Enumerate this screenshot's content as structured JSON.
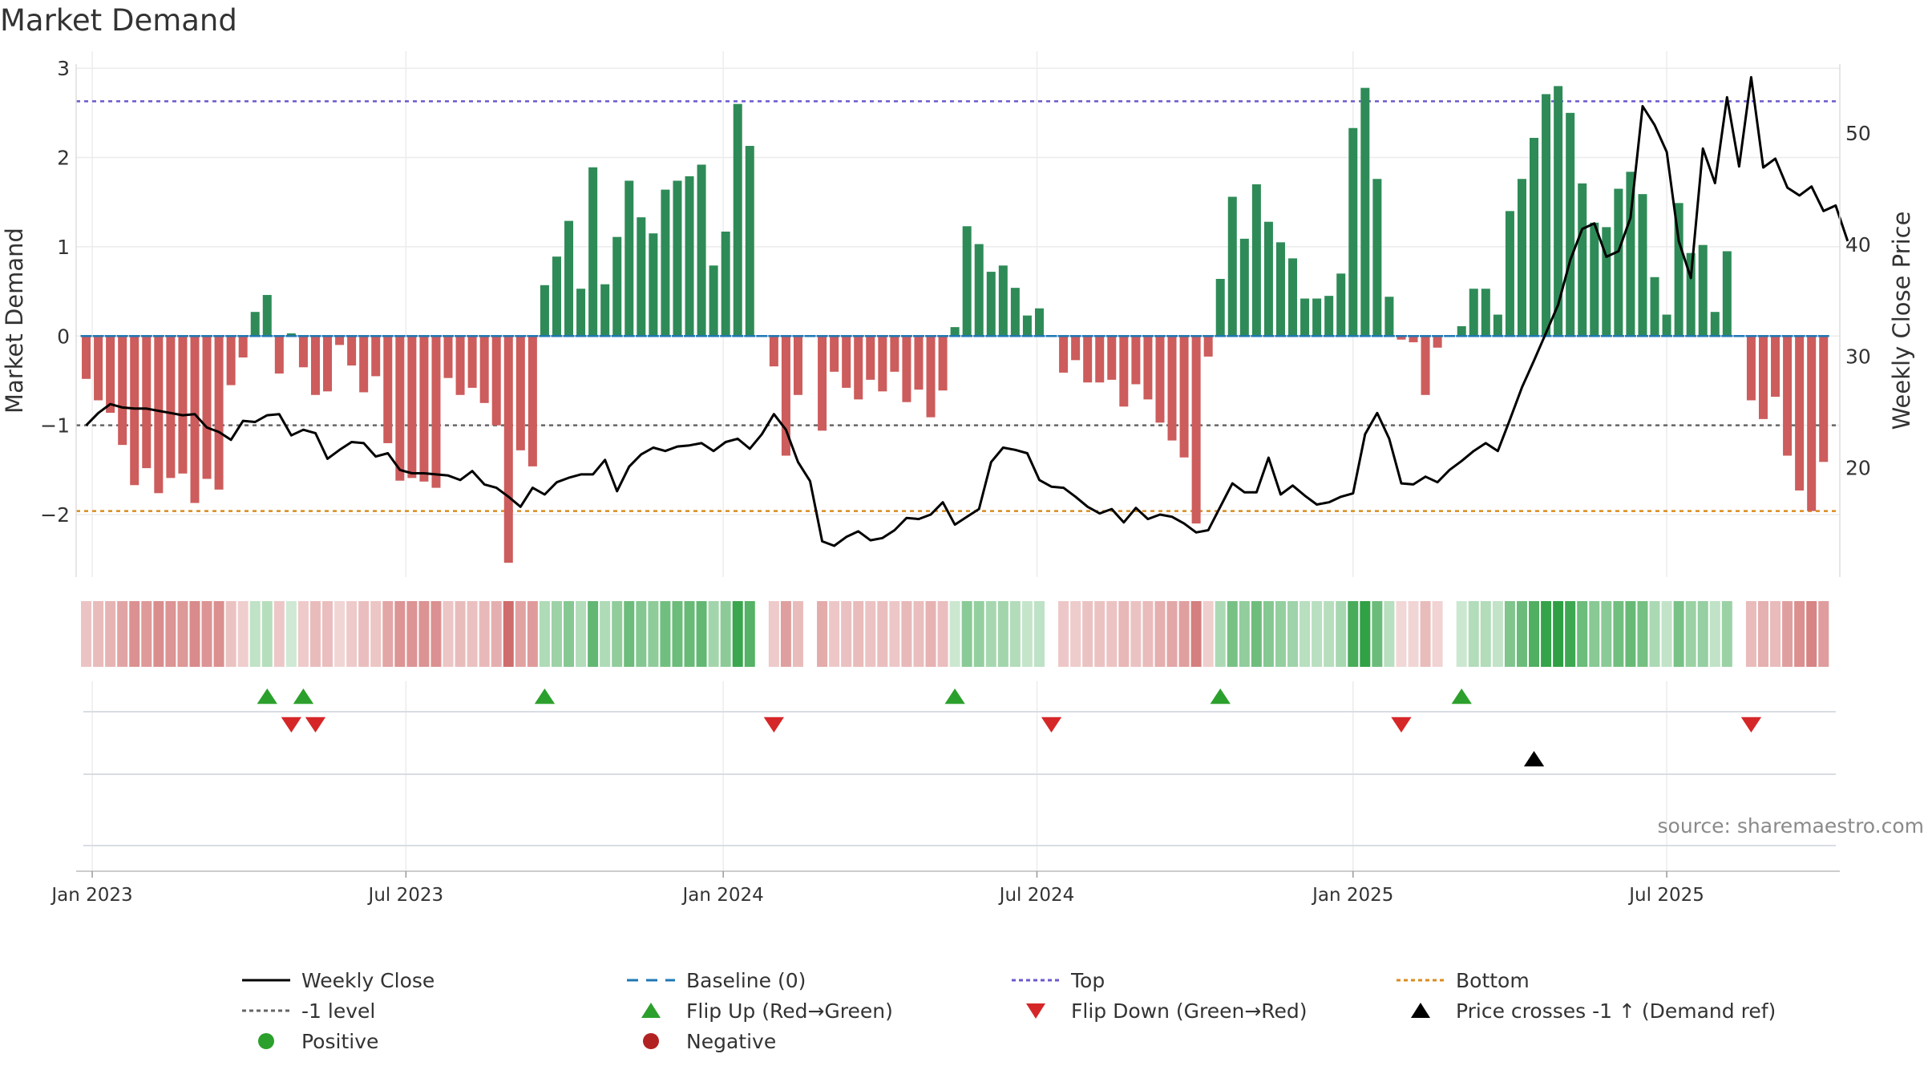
{
  "title": "Market Demand",
  "source_text": "source: sharemaestro.com",
  "colors": {
    "positive_bar": "#2e8b57",
    "negative_bar": "#cd5c5c",
    "price_line": "#000000",
    "baseline": "#1f77b4",
    "top_line": "#6a5acd",
    "bottom_line": "#d98c1f",
    "minus1_line": "#666666",
    "flip_up": "#2ca02c",
    "flip_down": "#d62728",
    "price_cross": "#000000",
    "positive_dot": "#2ca02c",
    "negative_dot": "#b22222"
  },
  "legend": [
    {
      "key": "weekly_close",
      "label": "Weekly Close"
    },
    {
      "key": "baseline",
      "label": "Baseline (0)"
    },
    {
      "key": "top",
      "label": "Top"
    },
    {
      "key": "bottom",
      "label": "Bottom"
    },
    {
      "key": "minus1",
      "label": "-1 level"
    },
    {
      "key": "flip_up",
      "label": "Flip Up (Red→Green)"
    },
    {
      "key": "flip_down",
      "label": "Flip Down (Green→Red)"
    },
    {
      "key": "price_cross",
      "label": "Price crosses -1 ↑ (Demand ref)"
    },
    {
      "key": "positive",
      "label": "Positive"
    },
    {
      "key": "negative",
      "label": "Negative"
    }
  ],
  "chart_data": {
    "type": "bar",
    "title": "Market Demand",
    "ylabel_left": "Market Demand",
    "ylabel_right": "Weekly Close Price",
    "ylim_left": [
      -2.7,
      3.1
    ],
    "ylim_right": [
      10.2,
      56.6
    ],
    "yticks_left": [
      "3",
      "2",
      "1",
      "0",
      "−1",
      "−2"
    ],
    "yticks_right": [
      "50",
      "40",
      "30",
      "20"
    ],
    "ytick_values_left": [
      3,
      2,
      1,
      0,
      -1,
      -2
    ],
    "ytick_values_right": [
      50,
      40,
      30,
      20
    ],
    "xticks": [
      {
        "label": "Jan 2023",
        "week": 1
      },
      {
        "label": "Jul 2023",
        "week": 27
      },
      {
        "label": "Jan 2024",
        "week": 53.3
      },
      {
        "label": "Jul 2024",
        "week": 79.3
      },
      {
        "label": "Jan 2025",
        "week": 105.5
      },
      {
        "label": "Jul 2025",
        "week": 131.5
      }
    ],
    "reference_lines": {
      "top": 2.63,
      "bottom": -1.96,
      "minus1": -1,
      "baseline": 0
    },
    "demand": [
      -0.48,
      -0.72,
      -0.86,
      -1.22,
      -1.67,
      -1.48,
      -1.76,
      -1.59,
      -1.54,
      -1.87,
      -1.6,
      -1.72,
      -0.55,
      -0.24,
      0.27,
      0.46,
      -0.42,
      0.03,
      -0.35,
      -0.66,
      -0.62,
      -0.1,
      -0.33,
      -0.63,
      -0.45,
      -1.2,
      -1.62,
      -1.59,
      -1.63,
      -1.7,
      -0.47,
      -0.66,
      -0.58,
      -0.75,
      -1.0,
      -2.54,
      -1.28,
      -1.46,
      0.57,
      0.89,
      1.29,
      0.53,
      1.89,
      0.58,
      1.11,
      1.74,
      1.33,
      1.15,
      1.64,
      1.74,
      1.79,
      1.92,
      0.79,
      1.17,
      2.6,
      2.13,
      0.0,
      -0.34,
      -1.34,
      -0.66,
      0.0,
      -1.06,
      -0.4,
      -0.58,
      -0.71,
      -0.49,
      -0.62,
      -0.4,
      -0.74,
      -0.6,
      -0.91,
      -0.61,
      0.1,
      1.23,
      1.03,
      0.72,
      0.79,
      0.54,
      0.23,
      0.31,
      0.0,
      -0.41,
      -0.27,
      -0.52,
      -0.52,
      -0.49,
      -0.79,
      -0.54,
      -0.71,
      -0.97,
      -1.17,
      -1.36,
      -2.1,
      -0.23,
      0.64,
      1.56,
      1.09,
      1.7,
      1.28,
      1.05,
      0.87,
      0.42,
      0.42,
      0.45,
      0.7,
      2.33,
      2.78,
      1.76,
      0.44,
      -0.04,
      -0.07,
      -0.66,
      -0.13,
      0.0,
      0.11,
      0.53,
      0.53,
      0.24,
      1.4,
      1.76,
      2.22,
      2.71,
      2.8,
      2.5,
      1.71,
      1.27,
      1.22,
      1.65,
      1.84,
      1.59,
      0.66,
      0.24,
      1.49,
      0.93,
      1.02,
      0.27,
      0.95,
      0.0,
      -0.72,
      -0.93,
      -0.68,
      -1.34,
      -1.73,
      -1.96,
      -1.41
    ],
    "price": [
      23.8,
      24.9,
      25.7,
      25.4,
      25.3,
      25.3,
      25.1,
      24.9,
      24.7,
      24.8,
      23.6,
      23.2,
      22.5,
      24.2,
      24.1,
      24.7,
      24.8,
      22.9,
      23.4,
      23.1,
      20.8,
      21.6,
      22.3,
      22.2,
      21.0,
      21.3,
      19.8,
      19.5,
      19.5,
      19.4,
      19.3,
      18.9,
      19.7,
      18.5,
      18.2,
      17.4,
      16.5,
      18.2,
      17.6,
      18.7,
      19.1,
      19.4,
      19.4,
      20.7,
      17.9,
      20.1,
      21.2,
      21.8,
      21.5,
      21.9,
      22.0,
      22.2,
      21.5,
      22.3,
      22.6,
      21.7,
      23.0,
      24.8,
      23.4,
      20.5,
      18.8,
      13.4,
      13.0,
      13.8,
      14.3,
      13.5,
      13.7,
      14.4,
      15.5,
      15.4,
      15.8,
      16.9,
      14.9,
      15.6,
      16.3,
      20.5,
      21.8,
      21.6,
      21.3,
      18.9,
      18.3,
      18.2,
      17.4,
      16.5,
      15.9,
      16.3,
      15.1,
      16.4,
      15.4,
      15.8,
      15.6,
      15.0,
      14.2,
      14.4,
      16.5,
      18.6,
      17.8,
      17.8,
      20.9,
      17.6,
      18.4,
      17.5,
      16.7,
      16.9,
      17.4,
      17.7,
      23.0,
      24.9,
      22.6,
      18.6,
      18.5,
      19.2,
      18.7,
      19.8,
      20.6,
      21.5,
      22.2,
      21.5,
      24.3,
      27.2,
      29.6,
      32.1,
      34.6,
      38.6,
      41.4,
      41.9,
      38.9,
      39.4,
      42.4,
      52.4,
      50.7,
      48.3,
      40.3,
      37.0,
      48.6,
      45.5,
      53.2,
      47.0,
      55.0,
      46.9,
      47.7,
      45.1,
      44.4,
      45.2,
      43.0,
      43.5,
      40.3
    ],
    "flip_up_weeks": [
      15,
      18,
      38,
      72,
      94,
      114
    ],
    "flip_down_weeks": [
      17,
      19,
      57,
      80,
      109,
      138
    ],
    "price_cross_weeks": [
      120
    ]
  }
}
